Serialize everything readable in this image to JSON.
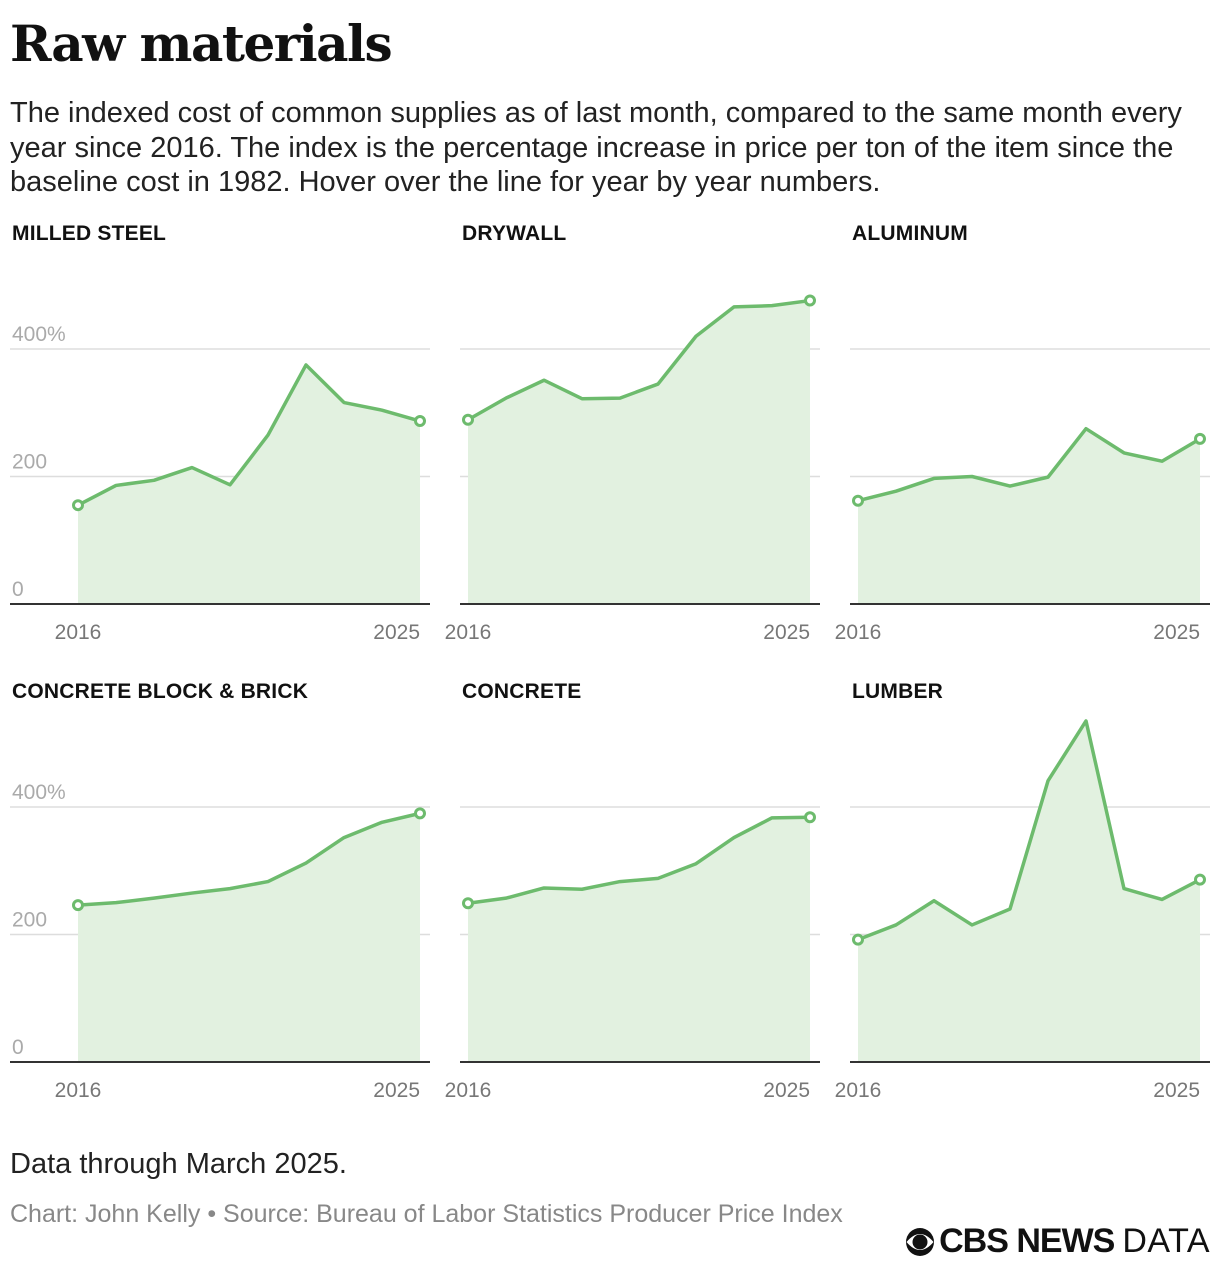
{
  "header": {
    "title": "Raw materials",
    "subtitle": "The indexed cost of common supplies as of last month, compared to the same month every year since 2016. The index is the percentage increase in price per ton of the item since the baseline cost in 1982. Hover over the line for year by year numbers."
  },
  "footer": {
    "note": "Data through March 2025.",
    "credit": "Chart: John Kelly • Source: Bureau of Labor Statistics Producer Price Index",
    "logo_brand": "CBS NEWS",
    "logo_suffix": "DATA"
  },
  "colors": {
    "line": "#6dbb6d",
    "fill": "#e2f1e0",
    "grid": "#dddddd",
    "axis": "#333333",
    "tick_label": "#aaaaaa",
    "x_label": "#777777"
  },
  "chart_data": [
    {
      "type": "area",
      "title": "MILLED STEEL",
      "x": [
        2016,
        2017,
        2018,
        2019,
        2020,
        2021,
        2022,
        2023,
        2024,
        2025
      ],
      "values": [
        155,
        186,
        194,
        214,
        187,
        265,
        375,
        316,
        304,
        287
      ],
      "ylim": [
        0,
        480
      ],
      "yticks": [
        0,
        200,
        400
      ],
      "ytick_labels": [
        "0",
        "200",
        "400%"
      ],
      "xtick_labels": [
        "2016",
        "2025"
      ]
    },
    {
      "type": "area",
      "title": "DRYWALL",
      "x": [
        2016,
        2017,
        2018,
        2019,
        2020,
        2021,
        2022,
        2023,
        2024,
        2025
      ],
      "values": [
        289,
        323,
        351,
        322,
        323,
        345,
        420,
        466,
        468,
        476
      ],
      "ylim": [
        0,
        480
      ],
      "yticks": [
        0,
        200,
        400
      ],
      "ytick_labels": [
        "0",
        "200",
        "400%"
      ],
      "xtick_labels": [
        "2016",
        "2025"
      ]
    },
    {
      "type": "area",
      "title": "ALUMINUM",
      "x": [
        2016,
        2017,
        2018,
        2019,
        2020,
        2021,
        2022,
        2023,
        2024,
        2025
      ],
      "values": [
        162,
        177,
        197,
        200,
        185,
        199,
        275,
        237,
        224,
        259
      ],
      "ylim": [
        0,
        480
      ],
      "yticks": [
        0,
        200,
        400
      ],
      "ytick_labels": [
        "0",
        "200",
        "400%"
      ],
      "xtick_labels": [
        "2016",
        "2025"
      ]
    },
    {
      "type": "area",
      "title": "CONCRETE BLOCK & BRICK",
      "x": [
        2016,
        2017,
        2018,
        2019,
        2020,
        2021,
        2022,
        2023,
        2024,
        2025
      ],
      "values": [
        246,
        250,
        257,
        265,
        272,
        283,
        312,
        352,
        376,
        390
      ],
      "ylim": [
        0,
        480
      ],
      "yticks": [
        0,
        200,
        400
      ],
      "ytick_labels": [
        "0",
        "200",
        "400%"
      ],
      "xtick_labels": [
        "2016",
        "2025"
      ]
    },
    {
      "type": "area",
      "title": "CONCRETE",
      "x": [
        2016,
        2017,
        2018,
        2019,
        2020,
        2021,
        2022,
        2023,
        2024,
        2025
      ],
      "values": [
        249,
        257,
        273,
        271,
        283,
        288,
        311,
        352,
        383,
        384
      ],
      "ylim": [
        0,
        480
      ],
      "yticks": [
        0,
        200,
        400
      ],
      "ytick_labels": [
        "0",
        "200",
        "400%"
      ],
      "xtick_labels": [
        "2016",
        "2025"
      ]
    },
    {
      "type": "area",
      "title": "LUMBER",
      "x": [
        2016,
        2017,
        2018,
        2019,
        2020,
        2021,
        2022,
        2023,
        2024,
        2025
      ],
      "values": [
        192,
        215,
        253,
        215,
        240,
        441,
        535,
        272,
        255,
        286
      ],
      "ylim": [
        0,
        480
      ],
      "yticks": [
        0,
        200,
        400
      ],
      "ytick_labels": [
        "0",
        "200",
        "400%"
      ],
      "xtick_labels": [
        "2016",
        "2025"
      ]
    }
  ]
}
